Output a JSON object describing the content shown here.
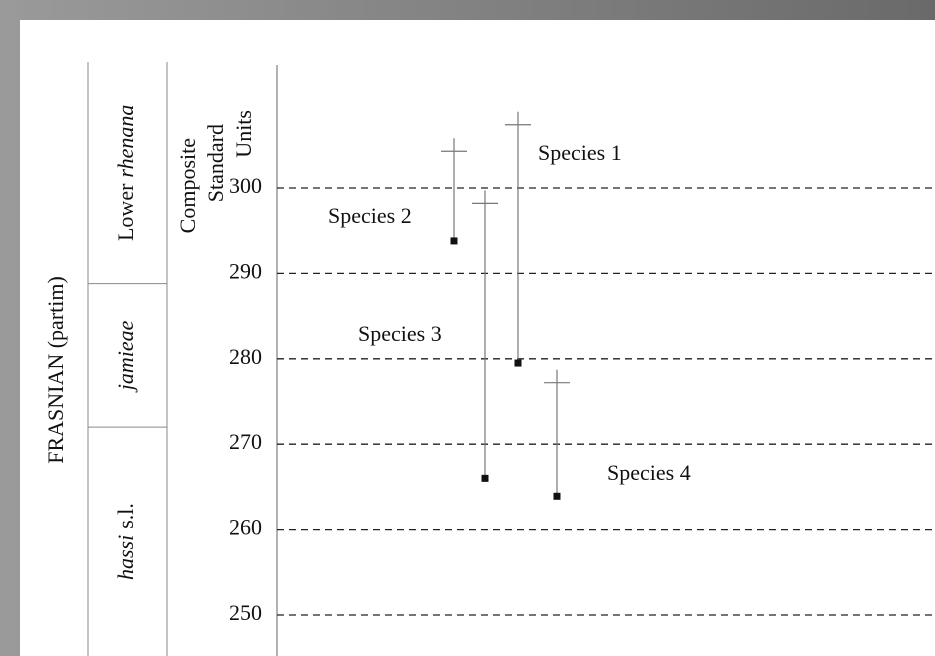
{
  "chart_data": {
    "type": "range",
    "title": "FRASNIAN (partim)",
    "ylabel": [
      "Composite",
      "Standard",
      "Units"
    ],
    "ylim": [
      245.2,
      314.4
    ],
    "yticks": [
      250,
      260,
      270,
      280,
      290,
      300
    ],
    "grid": true,
    "zones": [
      {
        "label": [
          {
            "text": "Lower"
          },
          {
            "text": "rhenana",
            "style": "italic"
          }
        ],
        "base": 288.8
      },
      {
        "label": [
          {
            "text": "jamieae",
            "style": "italic"
          }
        ],
        "base": 272.0
      },
      {
        "label": [
          {
            "text": "hassi",
            "style": "italic"
          },
          {
            "text": "s.l."
          }
        ],
        "base": 245.2
      }
    ],
    "series": [
      {
        "name": "Species 1",
        "values": [
          279.5,
          307.4
        ]
      },
      {
        "name": "Species 2",
        "values": [
          293.8,
          304.3
        ]
      },
      {
        "name": "Species 3",
        "values": [
          266.0,
          298.2
        ]
      },
      {
        "name": "Species 4",
        "values": [
          263.9,
          277.2
        ]
      }
    ]
  }
}
